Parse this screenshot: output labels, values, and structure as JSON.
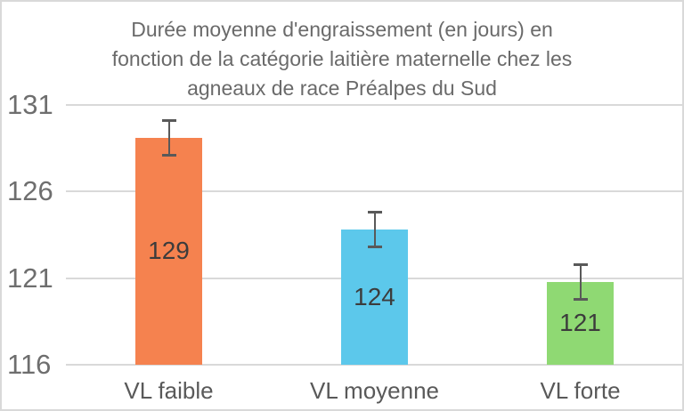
{
  "chart_data": {
    "type": "bar",
    "title": "Durée moyenne d'engraissement (en jours) en fonction de la catégorie laitière maternelle chez les agneaux de race Préalpes du Sud",
    "title_lines": [
      "Durée moyenne d'engraissement (en jours) en",
      "fonction de la catégorie laitière maternelle chez les",
      "agneaux de race Préalpes du Sud"
    ],
    "categories": [
      "VL faible",
      "VL moyenne",
      "VL forte"
    ],
    "values": [
      129,
      124,
      121
    ],
    "values_precise": [
      129.1,
      123.8,
      120.8
    ],
    "data_labels": [
      "129",
      "124",
      "121"
    ],
    "error_bars": {
      "plus": 1.0,
      "minus": 1.0
    },
    "bar_colors": [
      "#F5824F",
      "#5CC8EB",
      "#8FD973"
    ],
    "xlabel": "",
    "ylabel": "",
    "ylim": [
      116,
      131
    ],
    "yticks": [
      116,
      121,
      126,
      131
    ],
    "grid": true,
    "legend": "none",
    "colors": {
      "gridline": "#D9D9D9",
      "frame_border": "#D9D9D9",
      "title_text": "#6A6A6A",
      "y_axis_text": "#6E6E6E",
      "x_axis_text": "#595959",
      "data_label_text": "#3C3C3C",
      "error_bar": "#595959",
      "background": "#FFFFFF"
    }
  }
}
